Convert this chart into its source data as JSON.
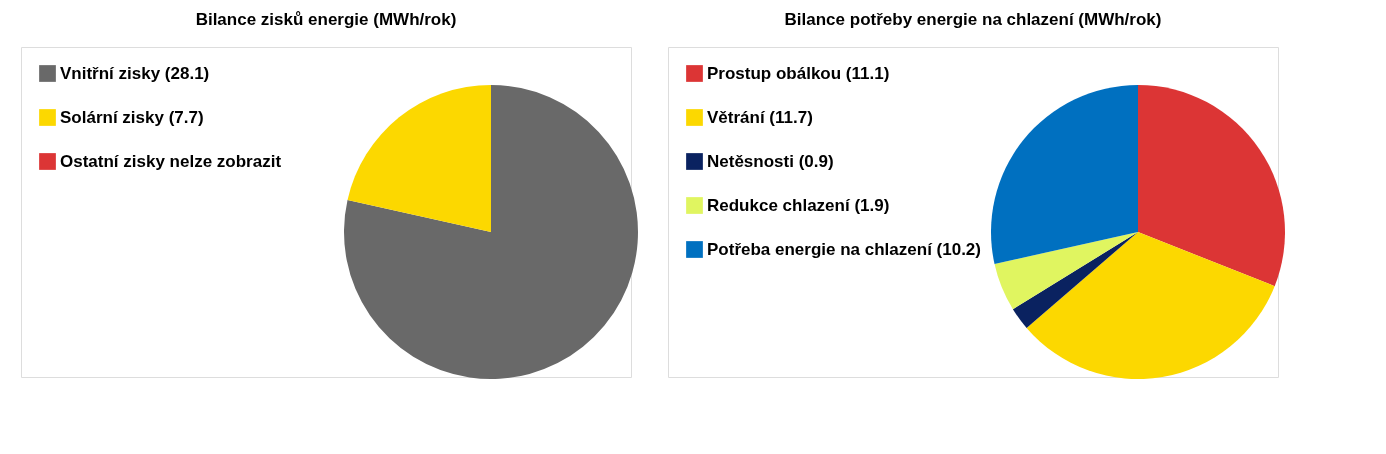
{
  "chart_data": [
    {
      "type": "pie",
      "title": "Bilance zisků energie (MWh/rok)",
      "legend": "top left",
      "categories": [
        "Vnitřní zisky (28.1)",
        "Solární zisky (7.7)",
        "Ostatní zisky nelze zobrazit"
      ],
      "values": [
        28.1,
        7.7,
        null
      ],
      "colors": [
        "#696969",
        "#fcd800",
        "#dc3535"
      ]
    },
    {
      "type": "pie",
      "title": "Bilance potřeby energie na chlazení (MWh/rok)",
      "legend": "top left",
      "categories": [
        "Prostup obálkou (11.1)",
        "Větrání (11.7)",
        "Netěsnosti (0.9)",
        "Redukce chlazení (1.9)",
        "Potřeba energie na chlazení (10.2)"
      ],
      "values": [
        11.1,
        11.7,
        0.9,
        1.9,
        10.2
      ],
      "colors": [
        "#dc3535",
        "#fcd800",
        "#0a2260",
        "#e0f560",
        "#0070c0"
      ]
    }
  ]
}
